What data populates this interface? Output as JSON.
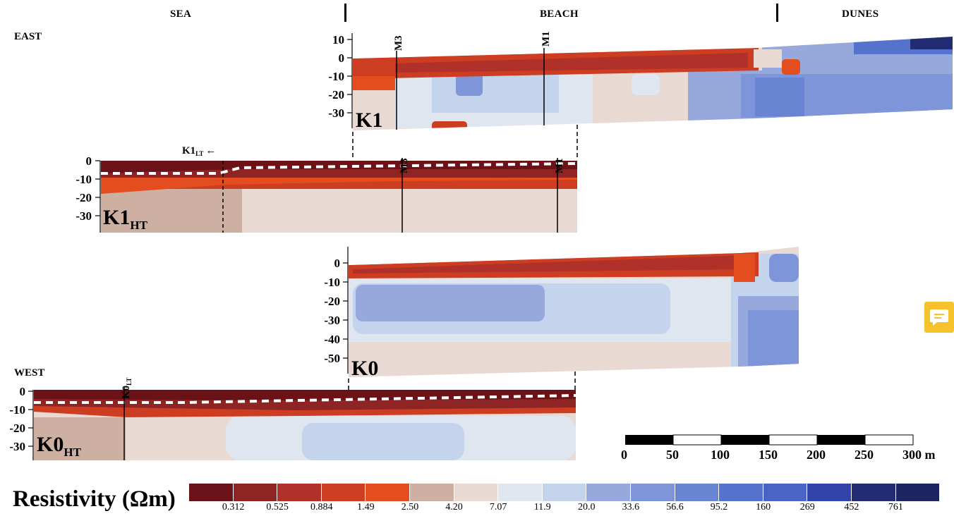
{
  "zones": {
    "sea": "SEA",
    "beach": "BEACH",
    "dunes": "DUNES"
  },
  "directions": {
    "east": "EAST",
    "west": "WEST"
  },
  "profiles": {
    "k1": {
      "label": "K1",
      "ticks": [
        "10",
        "0",
        "-10",
        "-20",
        "-30"
      ],
      "markers": [
        "M3",
        "M1"
      ]
    },
    "k1ht": {
      "label": "K1",
      "sub": "HT",
      "ticks": [
        "0",
        "-10",
        "-20",
        "-30"
      ],
      "markers": [
        "M3",
        "M1"
      ],
      "lt_label": "K1",
      "lt_sub": "LT",
      "lt_arrow": "←"
    },
    "k0": {
      "label": "K0",
      "ticks": [
        "0",
        "-10",
        "-20",
        "-30",
        "-40",
        "-50"
      ]
    },
    "k0ht": {
      "label": "K0",
      "sub": "HT",
      "ticks": [
        "0",
        "-10",
        "-20",
        "-30"
      ],
      "lt_label": "K0",
      "lt_sub": "LT"
    }
  },
  "scale_bar": {
    "labels": [
      "0",
      "50",
      "100",
      "150",
      "200",
      "250",
      "300 m"
    ]
  },
  "colorbar": {
    "title": "Resistivity (Ωm)",
    "labels": [
      "0.312",
      "0.525",
      "0.884",
      "1.49",
      "2.50",
      "4.20",
      "7.07",
      "11.9",
      "20.0",
      "33.6",
      "56.6",
      "95.2",
      "160",
      "269",
      "452",
      "761"
    ],
    "colors": [
      "#6b1218",
      "#8e2424",
      "#b0302a",
      "#cc3d22",
      "#e44d1f",
      "#cdb0a2",
      "#e8dad2",
      "#dfe6f0",
      "#c3d4ec",
      "#97a8dc",
      "#7f95d9",
      "#6a84d4",
      "#5573cc",
      "#4b63c4",
      "#3142aa",
      "#222c72",
      "#1c2560"
    ]
  },
  "icons": {
    "chat": "chat-icon"
  }
}
